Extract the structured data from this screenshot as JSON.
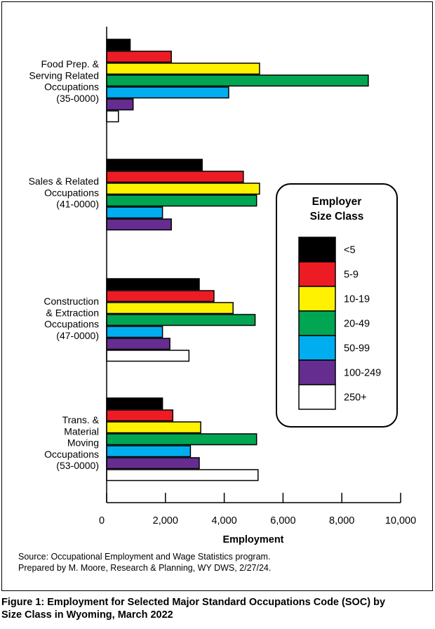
{
  "chart_data": {
    "type": "bar",
    "orientation": "horizontal",
    "categories": [
      [
        "Food Prep. &",
        "Serving Related",
        "Occupations",
        "(35-0000)"
      ],
      [
        "Sales & Related",
        "Occupations",
        "(41-0000)"
      ],
      [
        "Construction",
        "& Extraction",
        "Occupations",
        "(47-0000)"
      ],
      [
        "Trans. &",
        "Material",
        "Moving",
        "Occupations",
        "(53-0000)"
      ]
    ],
    "series": [
      {
        "name": "<5",
        "color": "#000000",
        "values": [
          800,
          3250,
          3150,
          1900
        ]
      },
      {
        "name": "5-9",
        "color": "#ed1c24",
        "values": [
          2200,
          4650,
          3650,
          2250
        ]
      },
      {
        "name": "10-19",
        "color": "#fff200",
        "values": [
          5200,
          5200,
          4300,
          3200
        ]
      },
      {
        "name": "20-49",
        "color": "#00a651",
        "values": [
          8900,
          5100,
          5050,
          5100
        ]
      },
      {
        "name": "50-99",
        "color": "#00aeef",
        "values": [
          4150,
          1900,
          1900,
          2850
        ]
      },
      {
        "name": "100-249",
        "color": "#662d91",
        "values": [
          900,
          2200,
          2150,
          3150
        ]
      },
      {
        "name": "250+",
        "color": "#ffffff",
        "values": [
          400,
          null,
          2800,
          5150
        ]
      }
    ],
    "xlabel": "Employment",
    "xlim": [
      0,
      10000
    ],
    "xticks": [
      0,
      2000,
      4000,
      6000,
      8000,
      10000
    ],
    "xtick_labels": [
      "0",
      "2,000",
      "4,000",
      "6,000",
      "8,000",
      "10,000"
    ],
    "legend": {
      "title": [
        "Employer",
        "Size Class"
      ],
      "placement": "right"
    },
    "grid": false
  },
  "source_lines": [
    "Source: Occupational Employment and Wage Statistics program.",
    "Prepared by M. Moore, Research & Planning, WY DWS, 2/27/24."
  ],
  "caption_lines": [
    "Figure 1: Employment for Selected Major Standard Occupations Code (SOC) by",
    "Size Class in Wyoming, March 2022"
  ]
}
